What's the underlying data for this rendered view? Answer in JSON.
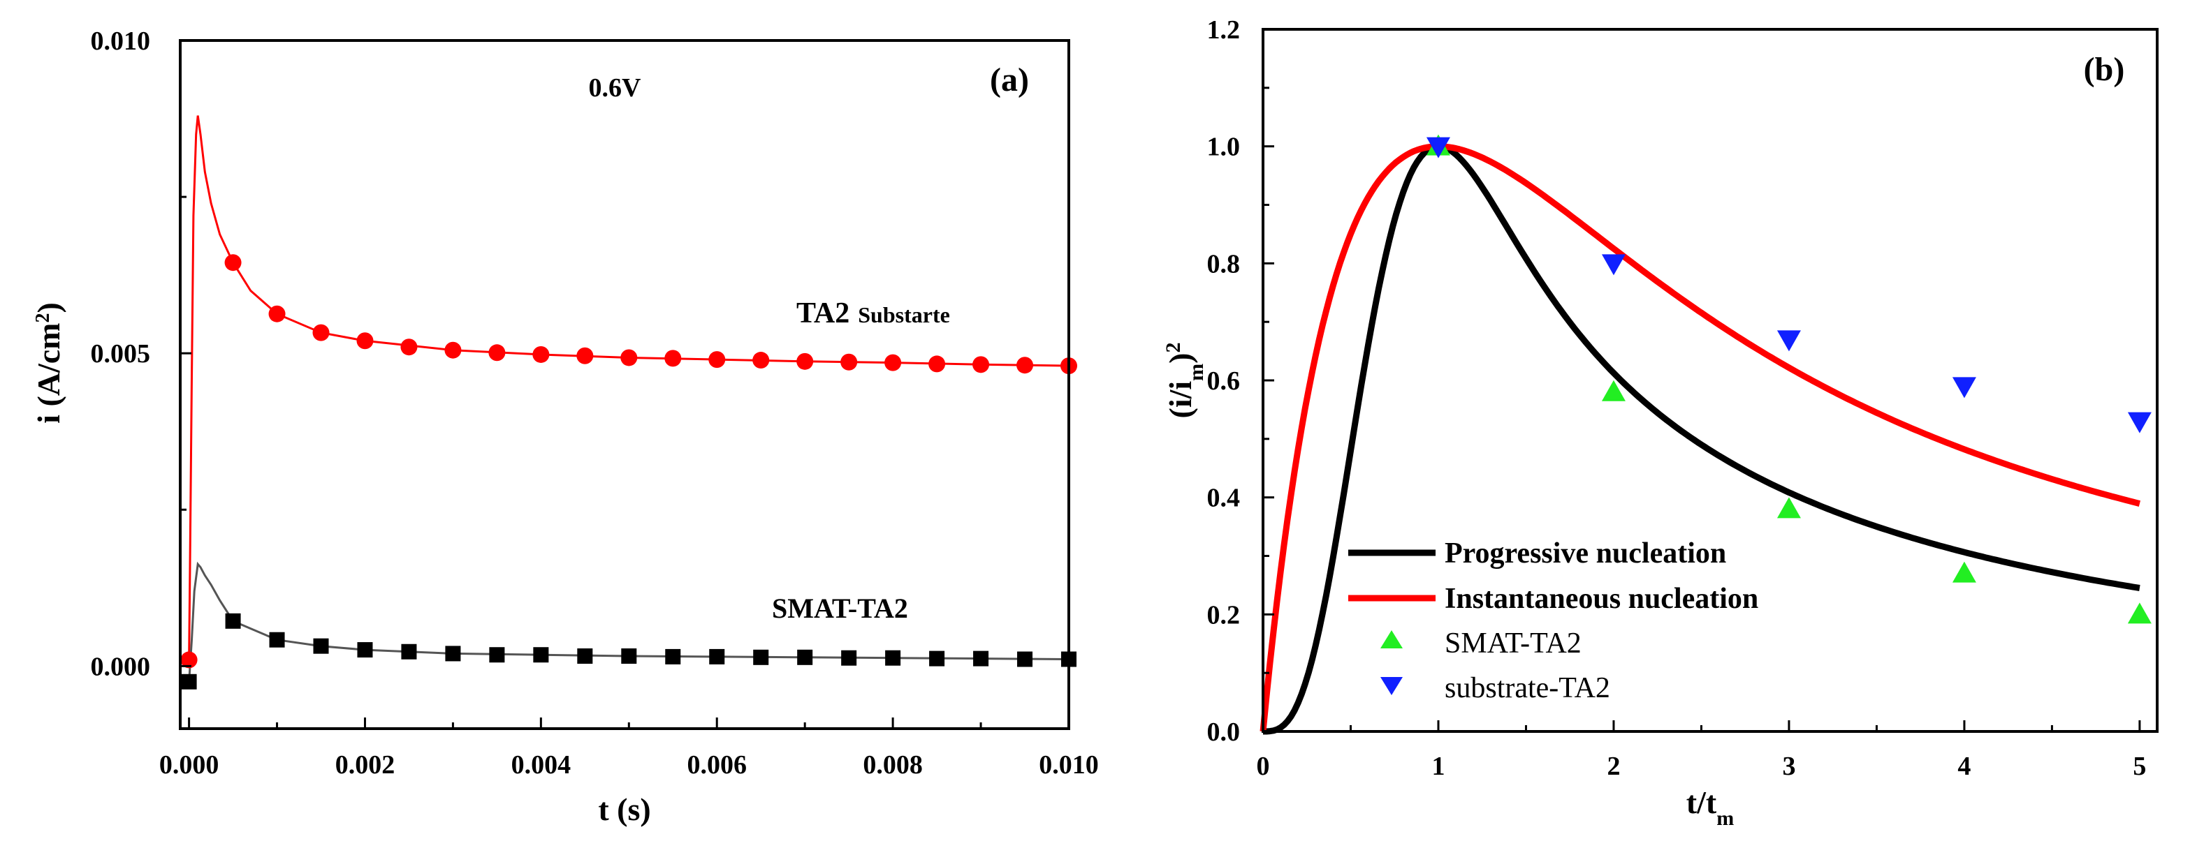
{
  "chart_data": [
    {
      "panel": "(a)",
      "type": "line",
      "title": "",
      "annotation": "0.6V",
      "xlabel": "t (s)",
      "ylabel": "i (A/cm²)",
      "ylabel_parts": {
        "main": "i (A/cm",
        "sup": "2",
        "end": ")"
      },
      "xlim": [
        -0.0001,
        0.01
      ],
      "ylim": [
        -0.001,
        0.01
      ],
      "xticks": [
        0.0,
        0.002,
        0.004,
        0.006,
        0.008,
        0.01
      ],
      "xtick_labels": [
        "0.000",
        "0.002",
        "0.004",
        "0.006",
        "0.008",
        "0.010"
      ],
      "yticks": [
        0.0,
        0.005,
        0.01
      ],
      "ytick_labels": [
        "0.000",
        "0.005",
        "0.010"
      ],
      "grid": false,
      "series": [
        {
          "name": "TA2 Substarte",
          "label_main": "TA2",
          "label_small": "Substarte",
          "color": "#ff0000",
          "marker": "circle",
          "line_x": [
            0,
            1e-05,
            3e-05,
            5e-05,
            8e-05,
            0.0001,
            0.00013,
            0.00018,
            0.00025,
            0.00035,
            0.0005,
            0.0007,
            0.001,
            0.0015,
            0.002,
            0.003,
            0.004,
            0.005,
            0.006,
            0.007,
            0.008,
            0.009,
            0.01
          ],
          "line_y": [
            0.0001,
            0.0015,
            0.0045,
            0.0072,
            0.0085,
            0.0088,
            0.0085,
            0.0079,
            0.0074,
            0.0069,
            0.00645,
            0.006,
            0.00563,
            0.00533,
            0.0052,
            0.00505,
            0.00498,
            0.00493,
            0.0049,
            0.00487,
            0.00485,
            0.00482,
            0.0048
          ],
          "marker_x": [
            0,
            0.0005,
            0.001,
            0.0015,
            0.002,
            0.0025,
            0.003,
            0.0035,
            0.004,
            0.0045,
            0.005,
            0.0055,
            0.006,
            0.0065,
            0.007,
            0.0075,
            0.008,
            0.0085,
            0.009,
            0.0095,
            0.01
          ],
          "marker_y": [
            0.0001,
            0.00645,
            0.00563,
            0.00533,
            0.0052,
            0.0051,
            0.00505,
            0.00501,
            0.00498,
            0.00496,
            0.00493,
            0.00492,
            0.0049,
            0.00489,
            0.00487,
            0.00486,
            0.00485,
            0.00483,
            0.00482,
            0.00481,
            0.0048
          ]
        },
        {
          "name": "SMAT-TA2",
          "label_main": "SMAT-TA2",
          "color": "#000000",
          "line_color": "#555555",
          "marker": "square",
          "line_x": [
            0,
            3e-05,
            6e-05,
            0.0001,
            0.00013,
            0.00018,
            0.00025,
            0.00035,
            0.0005,
            0.0007,
            0.001,
            0.0015,
            0.002,
            0.003,
            0.004,
            0.005,
            0.006,
            0.007,
            0.008,
            0.009,
            0.01
          ],
          "line_y": [
            -0.00025,
            0.0004,
            0.0012,
            0.00163,
            0.00158,
            0.00145,
            0.0013,
            0.00105,
            0.00072,
            0.0006,
            0.00042,
            0.00032,
            0.00026,
            0.0002,
            0.00018,
            0.00016,
            0.00015,
            0.00014,
            0.00013,
            0.00012,
            0.00011
          ],
          "marker_x": [
            0,
            0.0005,
            0.001,
            0.0015,
            0.002,
            0.0025,
            0.003,
            0.0035,
            0.004,
            0.0045,
            0.005,
            0.0055,
            0.006,
            0.0065,
            0.007,
            0.0075,
            0.008,
            0.0085,
            0.009,
            0.0095,
            0.01
          ],
          "marker_y": [
            -0.00025,
            0.00072,
            0.00042,
            0.00032,
            0.00026,
            0.00023,
            0.0002,
            0.00018,
            0.00018,
            0.00016,
            0.00016,
            0.00015,
            0.00015,
            0.00014,
            0.00014,
            0.00013,
            0.00013,
            0.00012,
            0.00012,
            0.00011,
            0.00011
          ]
        }
      ]
    },
    {
      "panel": "(b)",
      "type": "line",
      "title": "",
      "xlabel": "t/tm",
      "xlabel_parts": {
        "main": "t/t",
        "sub": "m"
      },
      "ylabel": "(i/im)²",
      "ylabel_parts": {
        "a": "(i/i",
        "sub": "m",
        "b": ")",
        "sup": "2"
      },
      "xlim": [
        0,
        5.1
      ],
      "ylim": [
        0,
        1.2
      ],
      "xticks": [
        0,
        1,
        2,
        3,
        4,
        5
      ],
      "xtick_labels": [
        "0",
        "1",
        "2",
        "3",
        "4",
        "5"
      ],
      "yticks": [
        0.0,
        0.2,
        0.4,
        0.6,
        0.8,
        1.0,
        1.2
      ],
      "ytick_labels": [
        "0.0",
        "0.2",
        "0.4",
        "0.6",
        "0.8",
        "1.0",
        "1.2"
      ],
      "grid": false,
      "legend_position": "bottom-left",
      "series": [
        {
          "name": "Progressive nucleation",
          "kind": "line",
          "model": "progressive",
          "color": "#000000"
        },
        {
          "name": "Instantaneous nucleation",
          "kind": "line",
          "model": "instantaneous",
          "color": "#ff0000"
        },
        {
          "name": "SMAT-TA2",
          "kind": "scatter",
          "marker": "triangle-up",
          "color": "#22ee22",
          "x": [
            1,
            2,
            3,
            4,
            5
          ],
          "y": [
            1.0,
            0.58,
            0.38,
            0.27,
            0.2
          ]
        },
        {
          "name": "substrate-TA2",
          "kind": "scatter",
          "marker": "triangle-down",
          "color": "#1020ff",
          "x": [
            1,
            2,
            3,
            4,
            5
          ],
          "y": [
            1.0,
            0.8,
            0.67,
            0.59,
            0.53
          ]
        }
      ]
    }
  ]
}
